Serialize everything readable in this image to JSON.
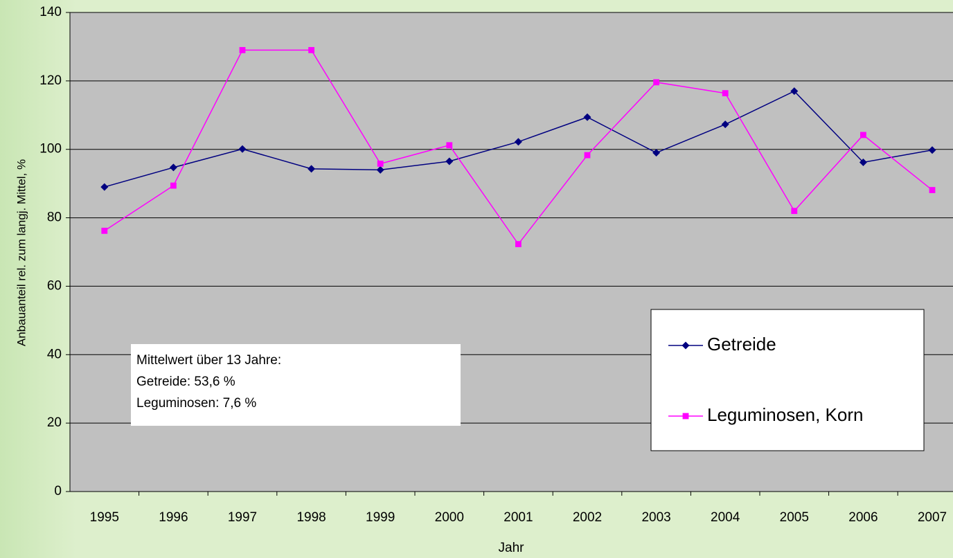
{
  "chart_data": {
    "type": "line",
    "xlabel": "Jahr",
    "ylabel": "Anbauanteil rel. zum langj. Mittel, %",
    "categories": [
      "1995",
      "1996",
      "1997",
      "1998",
      "1999",
      "2000",
      "2001",
      "2002",
      "2003",
      "2004",
      "2005",
      "2006",
      "2007"
    ],
    "series": [
      {
        "name": "Getreide",
        "color": "#000080",
        "marker": "diamond",
        "values": [
          89,
          94.7,
          100.1,
          94.3,
          94,
          96.5,
          102.2,
          109.4,
          99,
          107.3,
          117,
          96.2,
          99.8
        ]
      },
      {
        "name": "Leguminosen, Korn",
        "color": "#ff00ff",
        "marker": "square",
        "values": [
          76.2,
          89.4,
          129,
          129,
          95.8,
          101.2,
          72.3,
          98.3,
          119.6,
          116.4,
          82,
          104.2,
          88.1
        ]
      }
    ],
    "ylim": [
      0,
      140
    ],
    "yticks": [
      0,
      20,
      40,
      60,
      80,
      100,
      120,
      140
    ],
    "grid": true,
    "legend": "lower right",
    "annotation": [
      "Mittelwert über 13 Jahre:",
      "Getreide: 53,6 %",
      "Leguminosen: 7,6 %"
    ]
  }
}
